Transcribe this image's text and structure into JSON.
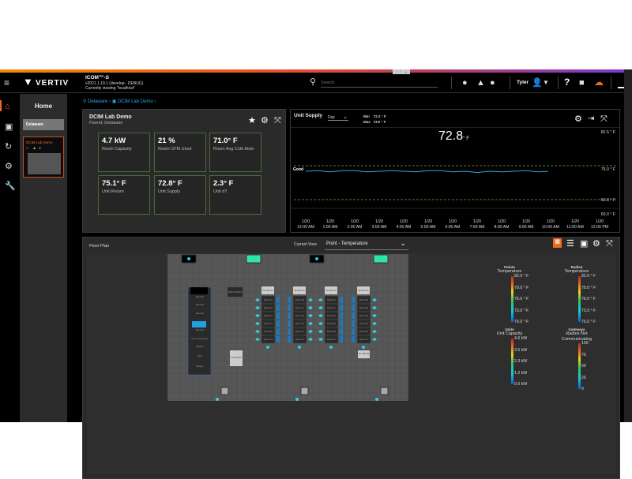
{
  "header": {
    "app_title": "ICOM™-S",
    "version": "v2021.1.19.1 (develop - DEBUG)",
    "viewing": "Currently viewing \"localhost\"",
    "brand": "VERTIV",
    "search_placeholder": "Search",
    "user": "Tyler",
    "accent": "#f06a1e"
  },
  "rail": {
    "items": [
      "home-icon",
      "reports-icon",
      "sync-icon",
      "gear-icon",
      "wrench-icon"
    ]
  },
  "sidebar": {
    "title": "Home",
    "items": [
      {
        "label": "Delaware"
      }
    ],
    "site_card": {
      "label": "DCIM Lab Demo"
    }
  },
  "breadcrumb": {
    "items": [
      "Delaware",
      "DCIM Lab Demo"
    ]
  },
  "summary": {
    "title": "DCIM Lab Demo",
    "parent": "Parent: Delaware",
    "tiles": [
      {
        "value": "4.7 kW",
        "label": "Room Capacity"
      },
      {
        "value": "21 %",
        "label": "Room CFM Used"
      },
      {
        "value": "71.0° F",
        "label": "Room Avg Cold Aisle"
      },
      {
        "value": "75.1° F",
        "label": "Unit Return"
      },
      {
        "value": "72.8° F",
        "label": "Unit Supply"
      },
      {
        "value": "2.3° F",
        "label": "Unit dT"
      }
    ]
  },
  "unit_supply": {
    "title": "Unit Supply",
    "range": "Day",
    "min_label": "Min",
    "min": "72.2 ° F",
    "max_label": "Max",
    "max": "73.0 ° F",
    "current": "72.8",
    "unit": "° F",
    "band_label": "Good"
  },
  "chart_data": {
    "type": "line",
    "title": "Unit Supply",
    "y_ticks": [
      "82.5 ° F",
      "75.0 ° F",
      "60.0 ° F",
      "60.0 ° F"
    ],
    "x_ticks": [
      [
        "1/20",
        "12:00 AM"
      ],
      [
        "1/20",
        "1:00 AM"
      ],
      [
        "1/20",
        "2:00 AM"
      ],
      [
        "1/20",
        "3:00 AM"
      ],
      [
        "1/20",
        "4:00 AM"
      ],
      [
        "1/20",
        "5:00 AM"
      ],
      [
        "1/20",
        "6:00 AM"
      ],
      [
        "1/20",
        "7:00 AM"
      ],
      [
        "1/20",
        "8:00 AM"
      ],
      [
        "1/20",
        "9:00 AM"
      ],
      [
        "1/20",
        "10:00 AM"
      ],
      [
        "1/20",
        "11:00 AM"
      ],
      [
        "1/20",
        "12:00 PM"
      ]
    ],
    "series": [
      {
        "color": "#2aa8e0",
        "x_hours": [
          0,
          0.5,
          1,
          1.5,
          2,
          2.5,
          3,
          3.5,
          4,
          4.5,
          5,
          5.5,
          6,
          6.5,
          7,
          7.5,
          8,
          8.5,
          9,
          9.5,
          9.9
        ],
        "values": [
          72.7,
          72.8,
          72.6,
          72.8,
          72.8,
          72.6,
          72.7,
          72.8,
          72.7,
          72.6,
          72.8,
          72.8,
          72.6,
          72.7,
          72.5,
          72.7,
          72.6,
          72.7,
          72.8,
          72.6,
          72.7
        ]
      }
    ],
    "thresholds": [
      75.0,
      65.0
    ],
    "grid": false
  },
  "floor_plan": {
    "title": "Floor Plan",
    "view_label": "Current View",
    "view_value": "Point - Temperature",
    "racks": [
      [
        "Rack 24",
        "Rack 23",
        "Rack 22",
        "Rack 21",
        "Rack 20",
        "Rack 19"
      ],
      [
        "Rack 18",
        "Rack 17",
        "Rack 16",
        "Rack 15",
        "Rack 14",
        "Rack 13"
      ],
      [
        "Rack 12",
        "Rack 11",
        "Rack 10",
        "Rack 09",
        "Rack 08",
        "Rack 07"
      ],
      [
        "Rack 06",
        "Rack 05",
        "Rack 04",
        "Rack 03",
        "Rack 02",
        "Rack 01"
      ]
    ],
    "pdus": [
      "PC PDU A2",
      "PC PDU A3",
      "PC PDU A4",
      "PC PDU A1",
      "PC PDU B5",
      "PC PDU B3"
    ],
    "left_units": [
      "Rack 34",
      "Rack 33",
      "Rack 32",
      "Rack 31",
      "Fire Suppression",
      "Bypass",
      "UPS",
      "Battery"
    ],
    "dcd": "DCD 20 Active",
    "legends": [
      {
        "head": "Points",
        "title": "Temperature",
        "ticks": [
          "82.0 ° F",
          "79.0 ° F",
          "76.0 ° F",
          "73.0 ° F",
          "70.0 ° F"
        ]
      },
      {
        "head": "Radios",
        "title": "Temperature",
        "ticks": [
          "82.0 ° F",
          "79.0 ° F",
          "76.0 ° F",
          "73.0 ° F",
          "70.0 ° F"
        ]
      },
      {
        "head": "Units",
        "title": "Unit Capacity",
        "ticks": [
          "4.6 kW",
          "3.5 kW",
          "2.3 kW",
          "1.2 kW",
          "0.0 kW"
        ]
      },
      {
        "head": "Gateways",
        "title": "Radios Not Communicating",
        "ticks": [
          "100",
          "75",
          "50",
          "25",
          "0"
        ]
      }
    ]
  }
}
